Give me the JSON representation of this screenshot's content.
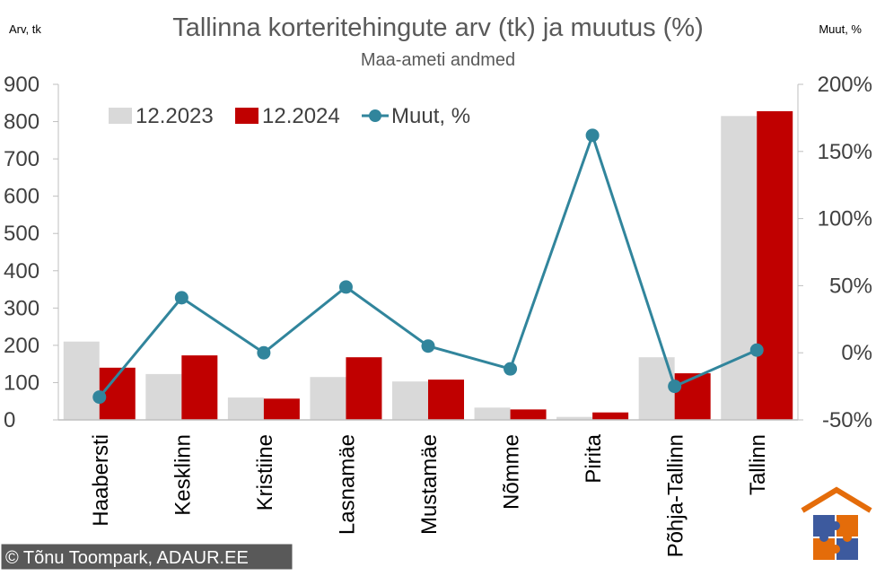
{
  "chart_data": {
    "type": "bar",
    "title": "Tallinna korteritehingute arv (tk) ja muutus (%)",
    "subtitle": "Maa-ameti andmed",
    "ylabel": "Arv, tk",
    "y2label": "Muut, %",
    "ylim": [
      0,
      900
    ],
    "y2lim": [
      -50,
      200
    ],
    "yticks": [
      "0",
      "100",
      "200",
      "300",
      "400",
      "500",
      "600",
      "700",
      "800",
      "900"
    ],
    "y2ticks": [
      "-50%",
      "0%",
      "50%",
      "100%",
      "150%",
      "200%"
    ],
    "categories": [
      "Haabersti",
      "Kesklinn",
      "Kristiine",
      "Lasnamäe",
      "Mustamäe",
      "Nõmme",
      "Pirita",
      "Põhja-Tallinn",
      "Tallinn"
    ],
    "series": [
      {
        "name": "12.2023",
        "type": "bar",
        "axis": "left",
        "color": "#d9d9d9",
        "values": [
          210,
          123,
          60,
          115,
          103,
          33,
          8,
          168,
          815
        ]
      },
      {
        "name": "12.2024",
        "type": "bar",
        "axis": "left",
        "color": "#c00000",
        "values": [
          140,
          173,
          57,
          168,
          108,
          28,
          20,
          125,
          828
        ]
      },
      {
        "name": "Muut, %",
        "type": "line",
        "axis": "right",
        "color": "#31859c",
        "values": [
          -33,
          41,
          0,
          49,
          5,
          -12,
          162,
          -25,
          2
        ]
      }
    ],
    "legend": {
      "position": "top-left",
      "labels": [
        "12.2023",
        "12.2024",
        "Muut, %"
      ]
    },
    "grid": false
  },
  "copyright": "© Tõnu Toompark, ADAUR.EE",
  "colors": {
    "gray": "#d9d9d9",
    "red": "#c00000",
    "teal": "#31859c",
    "axis": "#bfbfbf",
    "logo_orange": "#e46c0a",
    "logo_blue": "#3d5a9e"
  }
}
